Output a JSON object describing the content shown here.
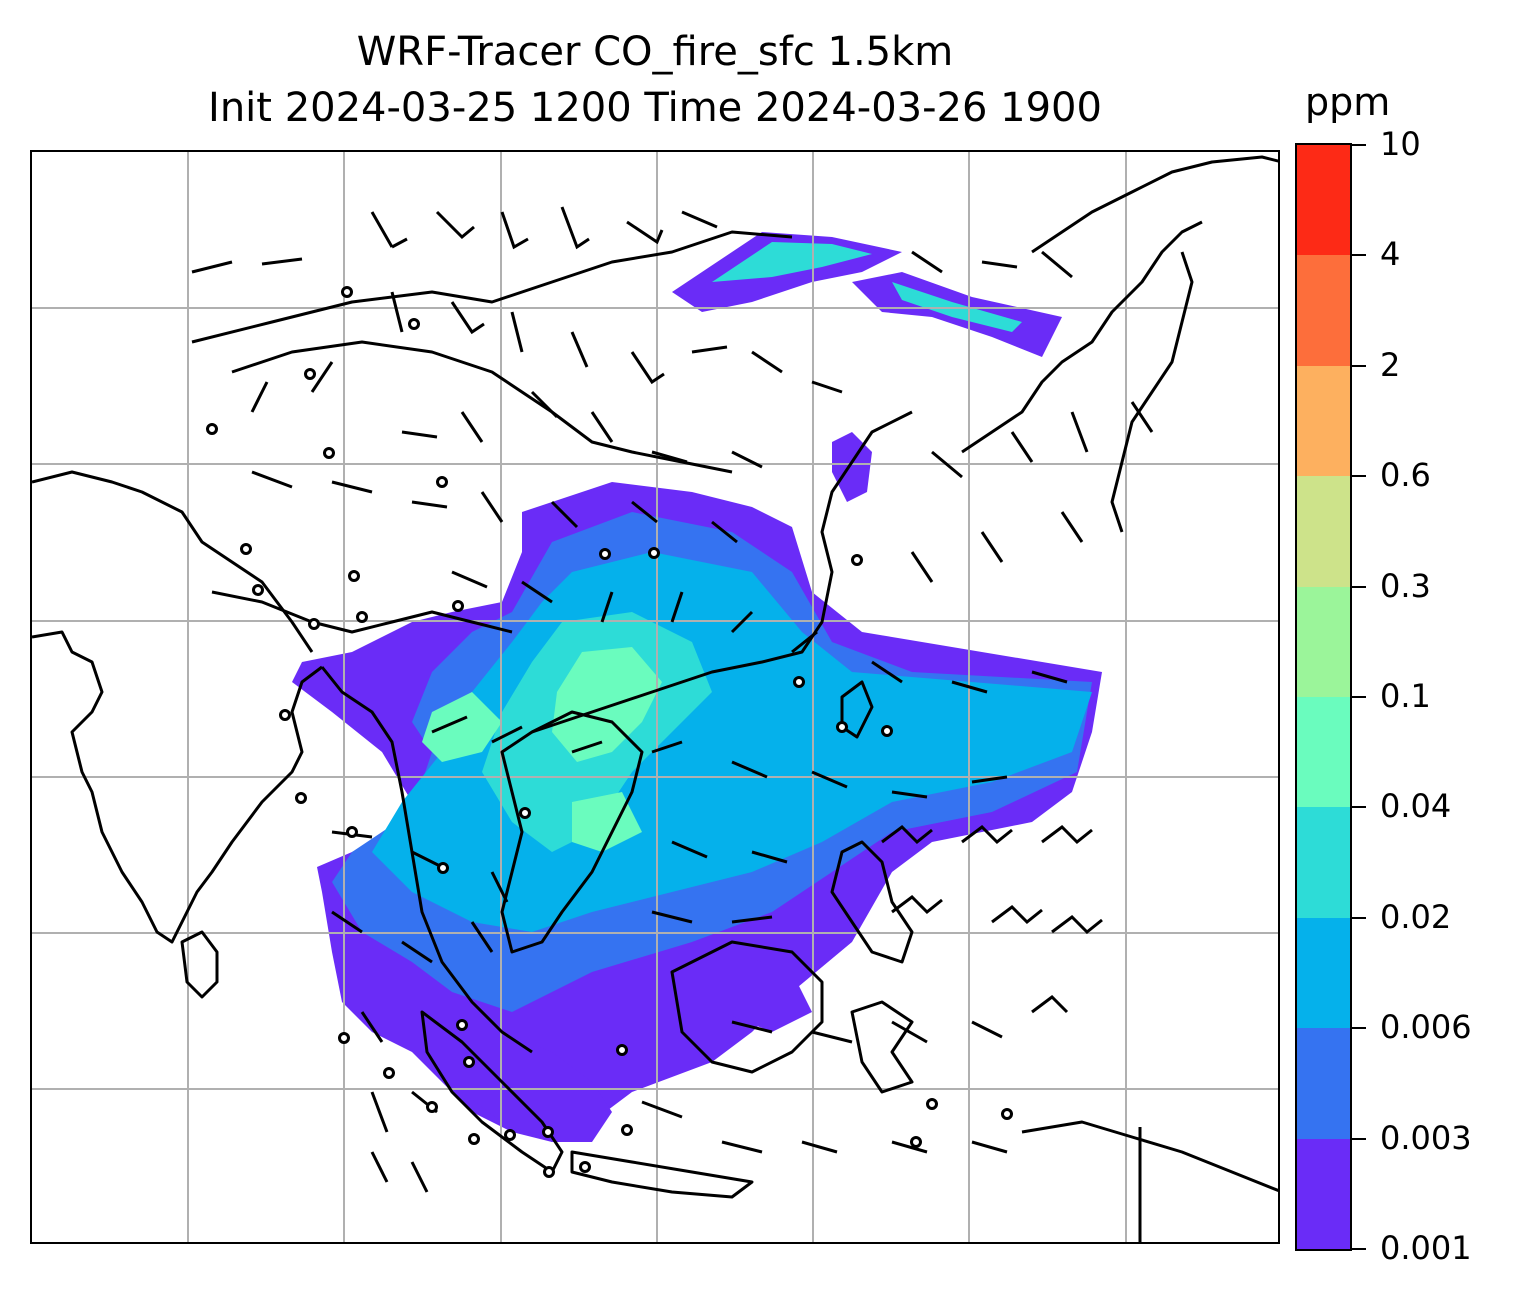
{
  "title": {
    "line1": "WRF-Tracer CO_fire_sfc 1.5km",
    "line2": "Init 2024-03-25 1200 Time 2024-03-26 1900"
  },
  "colorbar": {
    "unit": "ppm",
    "ticks": [
      "0.001",
      "0.003",
      "0.006",
      "0.02",
      "0.04",
      "0.1",
      "0.3",
      "0.6",
      "2",
      "4",
      "10"
    ],
    "colors": [
      "#6a2cf7",
      "#3573f1",
      "#05b1eb",
      "#2ddcd7",
      "#6afcbe",
      "#9bf59a",
      "#cde38a",
      "#fdb05f",
      "#fd6e3b",
      "#fd2a16"
    ]
  },
  "map": {
    "gridlines": "on",
    "coastline_color": "#000000",
    "gridline_color": "#b0b0b0",
    "field": "CO_fire_sfc",
    "overlay": "wind barbs"
  }
}
